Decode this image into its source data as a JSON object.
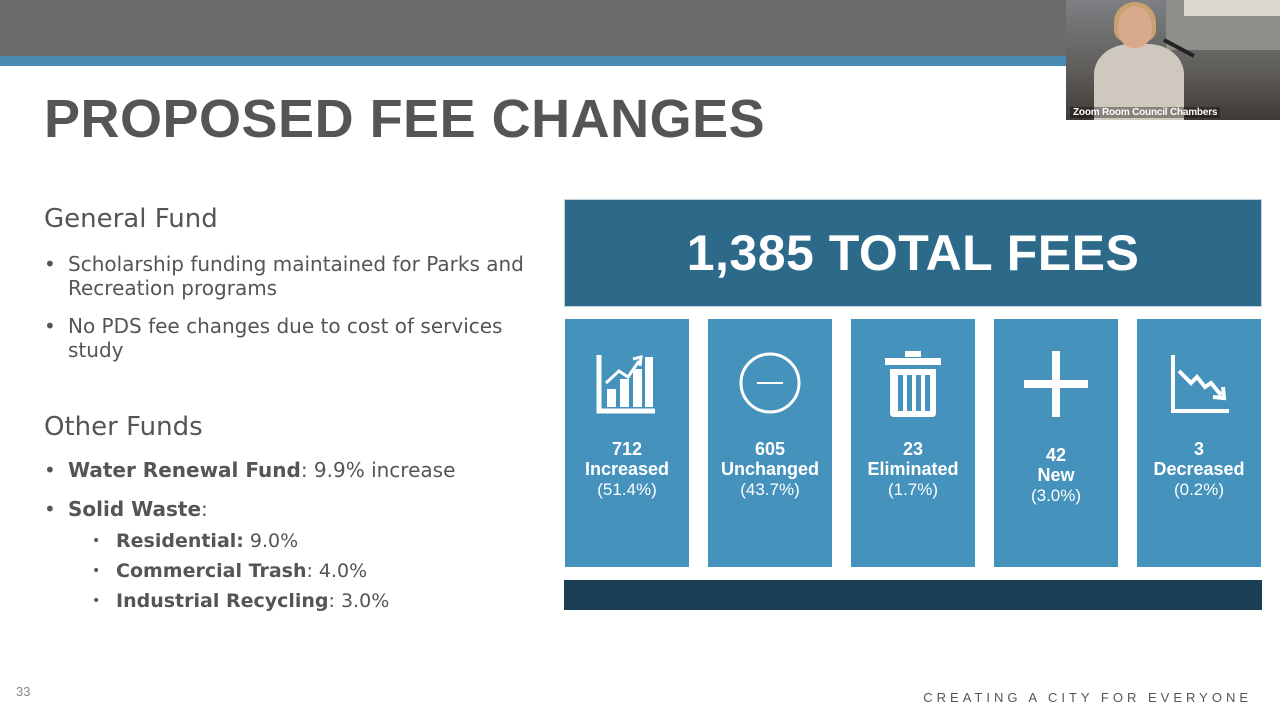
{
  "slide": {
    "title": "PROPOSED FEE CHANGES",
    "number": "33",
    "footer": "CREATING A CITY FOR EVERYONE"
  },
  "video": {
    "participant_label": "Zoom Room Council Chambers"
  },
  "general_fund": {
    "heading": "General Fund",
    "bullets": [
      "Scholarship funding maintained for Parks and Recreation programs",
      "No PDS fee changes due to cost of services study"
    ]
  },
  "other_funds": {
    "heading": "Other Funds",
    "water": {
      "label": "Water Renewal Fund",
      "value": ": 9.9% increase"
    },
    "solid_waste": {
      "label": "Solid Waste",
      "value": ":"
    },
    "sub_items": [
      {
        "label": "Residential:",
        "value": " 9.0%"
      },
      {
        "label": "Commercial Trash",
        "value": ": 4.0%"
      },
      {
        "label": "Industrial Recycling",
        "value": ": 3.0%"
      }
    ]
  },
  "total": {
    "text": "1,385 TOTAL FEES"
  },
  "stats": [
    {
      "count": "712",
      "label": "Increased",
      "percent": "(51.4%)",
      "icon": "bar-chart-up-icon"
    },
    {
      "count": "605",
      "label": "Unchanged",
      "percent": "(43.7%)",
      "icon": "minus-circle-icon"
    },
    {
      "count": "23",
      "label": "Eliminated",
      "percent": "(1.7%)",
      "icon": "trash-can-icon"
    },
    {
      "count": "42",
      "label": "New",
      "percent": "(3.0%)",
      "icon": "plus-icon"
    },
    {
      "count": "3",
      "label": "Decreased",
      "percent": "(0.2%)",
      "icon": "chart-down-icon"
    }
  ],
  "colors": {
    "header_gray": "#6b6b6b",
    "accent_blue": "#4a8ab2",
    "total_box": "#2d6a8a",
    "card_blue": "#4592bd",
    "band_navy": "#1b3f55",
    "text_gray": "#555555"
  }
}
